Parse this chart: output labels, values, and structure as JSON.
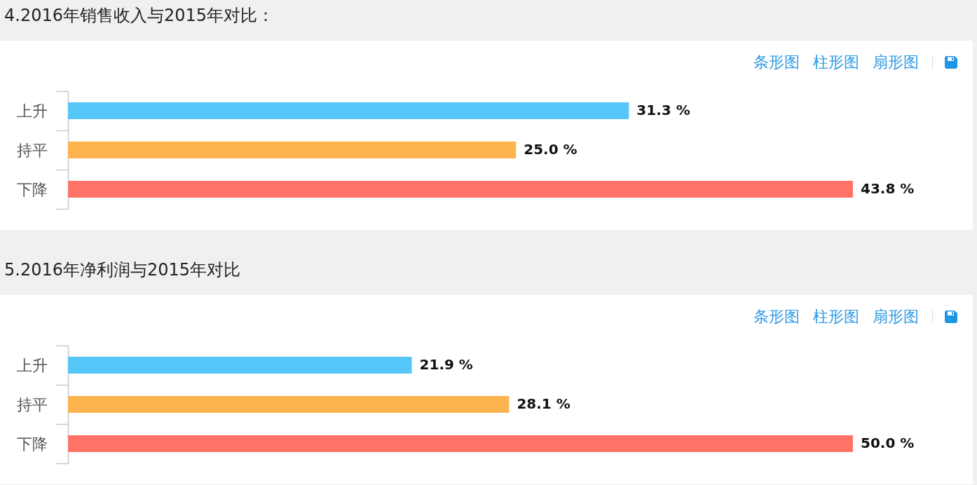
{
  "chart_data": [
    {
      "type": "bar",
      "orientation": "horizontal",
      "title": "4.2016年销售收入与2015年对比：",
      "categories": [
        "上升",
        "持平",
        "下降"
      ],
      "values": [
        31.3,
        25.0,
        43.8
      ],
      "colors": [
        "#55c6f8",
        "#fdb44e",
        "#ff7366"
      ],
      "value_labels": [
        "31.3 %",
        "25.0 %",
        "43.8 %"
      ],
      "annotations": [
        "条形图",
        "柱形图",
        "扇形图"
      ]
    },
    {
      "type": "bar",
      "orientation": "horizontal",
      "title": "5.2016年净利润与2015年对比",
      "categories": [
        "上升",
        "持平",
        "下降"
      ],
      "values": [
        21.9,
        28.1,
        50.0
      ],
      "colors": [
        "#55c6f8",
        "#fdb44e",
        "#ff7366"
      ],
      "value_labels": [
        "21.9 %",
        "28.1 %",
        "50.0 %"
      ],
      "annotations": [
        "条形图",
        "柱形图",
        "扇形图"
      ]
    }
  ]
}
